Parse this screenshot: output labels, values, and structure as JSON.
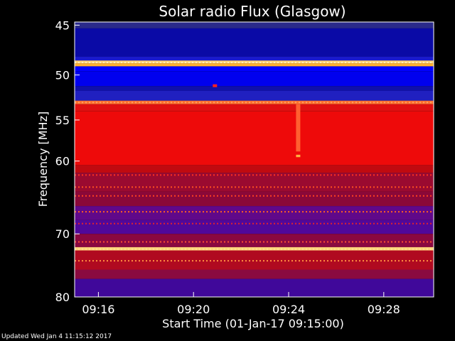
{
  "chart_data": {
    "type": "heatmap",
    "title": "Solar radio Flux (Glasgow)",
    "xlabel": "Start Time (01-Jan-17 09:15:00)",
    "ylabel": "Frequency [MHz]",
    "x_ticks": [
      "09:16",
      "09:20",
      "09:24",
      "09:28"
    ],
    "x_tick_minutes": [
      1,
      5,
      9,
      13
    ],
    "xlim_minutes": [
      0,
      15.1
    ],
    "y_ticks": [
      45,
      50,
      55,
      60,
      70,
      80
    ],
    "ylim": [
      44.7,
      80
    ],
    "y_scale": "log",
    "bands": [
      {
        "f0": 44.7,
        "f1": 45.3,
        "color": "#2a2a8a"
      },
      {
        "f0": 45.3,
        "f1": 48.1,
        "color": "#0a0aa6"
      },
      {
        "f0": 48.1,
        "f1": 48.5,
        "color": "#1a1acc"
      },
      {
        "f0": 48.5,
        "f1": 48.8,
        "color": "#ffd27a"
      },
      {
        "f0": 48.8,
        "f1": 49.1,
        "color": "#ffb030"
      },
      {
        "f0": 49.1,
        "f1": 49.6,
        "color": "#0000ff"
      },
      {
        "f0": 49.6,
        "f1": 51.2,
        "color": "#0000ee"
      },
      {
        "f0": 51.2,
        "f1": 51.7,
        "color": "#1010aa"
      },
      {
        "f0": 51.7,
        "f1": 52.8,
        "color": "#2020c0"
      },
      {
        "f0": 52.8,
        "f1": 53.2,
        "color": "#ff7030"
      },
      {
        "f0": 53.2,
        "f1": 54.0,
        "color": "#e01010"
      },
      {
        "f0": 54.0,
        "f1": 60.5,
        "color": "#ee0a0a"
      },
      {
        "f0": 60.5,
        "f1": 61.5,
        "color": "#c00a10"
      },
      {
        "f0": 61.5,
        "f1": 64.0,
        "color": "#9a0a30"
      },
      {
        "f0": 64.0,
        "f1": 66.0,
        "color": "#8a0838"
      },
      {
        "f0": 66.0,
        "f1": 68.0,
        "color": "#60088a"
      },
      {
        "f0": 68.0,
        "f1": 70.0,
        "color": "#50089a"
      },
      {
        "f0": 70.0,
        "f1": 72.0,
        "color": "#8a0840"
      },
      {
        "f0": 72.0,
        "f1": 72.5,
        "color": "#ffd27a"
      },
      {
        "f0": 72.5,
        "f1": 75.5,
        "color": "#b00a20"
      },
      {
        "f0": 75.5,
        "f1": 77.0,
        "color": "#8a0a40"
      },
      {
        "f0": 77.0,
        "f1": 80.0,
        "color": "#40089a"
      }
    ],
    "stripes": [
      {
        "f": 48.7,
        "color": "#ffeebb"
      },
      {
        "f": 53.0,
        "color": "#ffa060"
      },
      {
        "f": 61.8,
        "color": "#ff3020"
      },
      {
        "f": 63.4,
        "color": "#ff5020"
      },
      {
        "f": 64.6,
        "color": "#ff4020"
      },
      {
        "f": 66.8,
        "color": "#ff6020"
      },
      {
        "f": 68.5,
        "color": "#e02030"
      },
      {
        "f": 71.2,
        "color": "#ff5030"
      },
      {
        "f": 72.3,
        "color": "#ffe090"
      },
      {
        "f": 74.1,
        "color": "#ff9040"
      }
    ],
    "features": [
      {
        "t": 9.4,
        "f0": 53.2,
        "f1": 58.8,
        "color": "#ff6030"
      },
      {
        "t": 9.4,
        "f0": 59.2,
        "f1": 59.5,
        "color": "#ffb040"
      },
      {
        "t": 5.9,
        "f0": 51.0,
        "f1": 51.3,
        "color": "#ff2020"
      }
    ]
  },
  "footer": {
    "updated": "Updated Wed Jan  4 11:15:12 2017"
  }
}
